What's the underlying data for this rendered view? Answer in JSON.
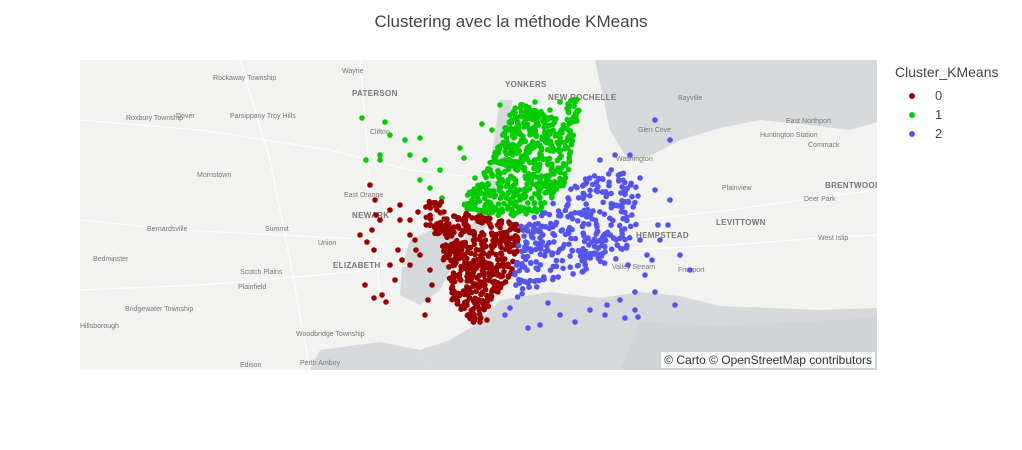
{
  "title": "Clustering avec la méthode KMeans",
  "attribution": "© Carto © OpenStreetMap contributors",
  "legend": {
    "title": "Cluster_KMeans",
    "items": [
      {
        "label": "0",
        "color": "#990000"
      },
      {
        "label": "1",
        "color": "#00cc00"
      },
      {
        "label": "2",
        "color": "#5555ee"
      }
    ]
  },
  "place_labels": [
    {
      "name": "Wayne",
      "bold": false
    },
    {
      "name": "Rockaway Township",
      "bold": false
    },
    {
      "name": "PATERSON",
      "bold": true
    },
    {
      "name": "YONKERS",
      "bold": true
    },
    {
      "name": "NEW ROCHELLE",
      "bold": true
    },
    {
      "name": "Bayville",
      "bold": false
    },
    {
      "name": "Roxbury Township",
      "bold": false
    },
    {
      "name": "Dover",
      "bold": false
    },
    {
      "name": "Parsippany Troy Hills",
      "bold": false
    },
    {
      "name": "Clifton",
      "bold": false
    },
    {
      "name": "Glen Cove",
      "bold": false
    },
    {
      "name": "Huntington Station",
      "bold": false
    },
    {
      "name": "East Northport",
      "bold": false
    },
    {
      "name": "Commack",
      "bold": false
    },
    {
      "name": "Morristown",
      "bold": false
    },
    {
      "name": "Washington",
      "bold": false
    },
    {
      "name": "East Orange",
      "bold": false
    },
    {
      "name": "Plainview",
      "bold": false
    },
    {
      "name": "BRENTWOOD",
      "bold": true
    },
    {
      "name": "Deer Park",
      "bold": false
    },
    {
      "name": "NEWARK",
      "bold": true
    },
    {
      "name": "LEVITTOWN",
      "bold": true
    },
    {
      "name": "Bernardsville",
      "bold": false
    },
    {
      "name": "Summit",
      "bold": false
    },
    {
      "name": "Union",
      "bold": false
    },
    {
      "name": "HEMPSTEAD",
      "bold": true
    },
    {
      "name": "West Islip",
      "bold": false
    },
    {
      "name": "Bedminster",
      "bold": false
    },
    {
      "name": "ELIZABETH",
      "bold": true
    },
    {
      "name": "Valley Stream",
      "bold": false
    },
    {
      "name": "Freeport",
      "bold": false
    },
    {
      "name": "Scotch Plains",
      "bold": false
    },
    {
      "name": "Plainfield",
      "bold": false
    },
    {
      "name": "Bridgewater Township",
      "bold": false
    },
    {
      "name": "Hillsborough",
      "bold": false
    },
    {
      "name": "Woodbridge Township",
      "bold": false
    },
    {
      "name": "Edison",
      "bold": false
    },
    {
      "name": "Perth Amboy",
      "bold": false
    }
  ]
}
